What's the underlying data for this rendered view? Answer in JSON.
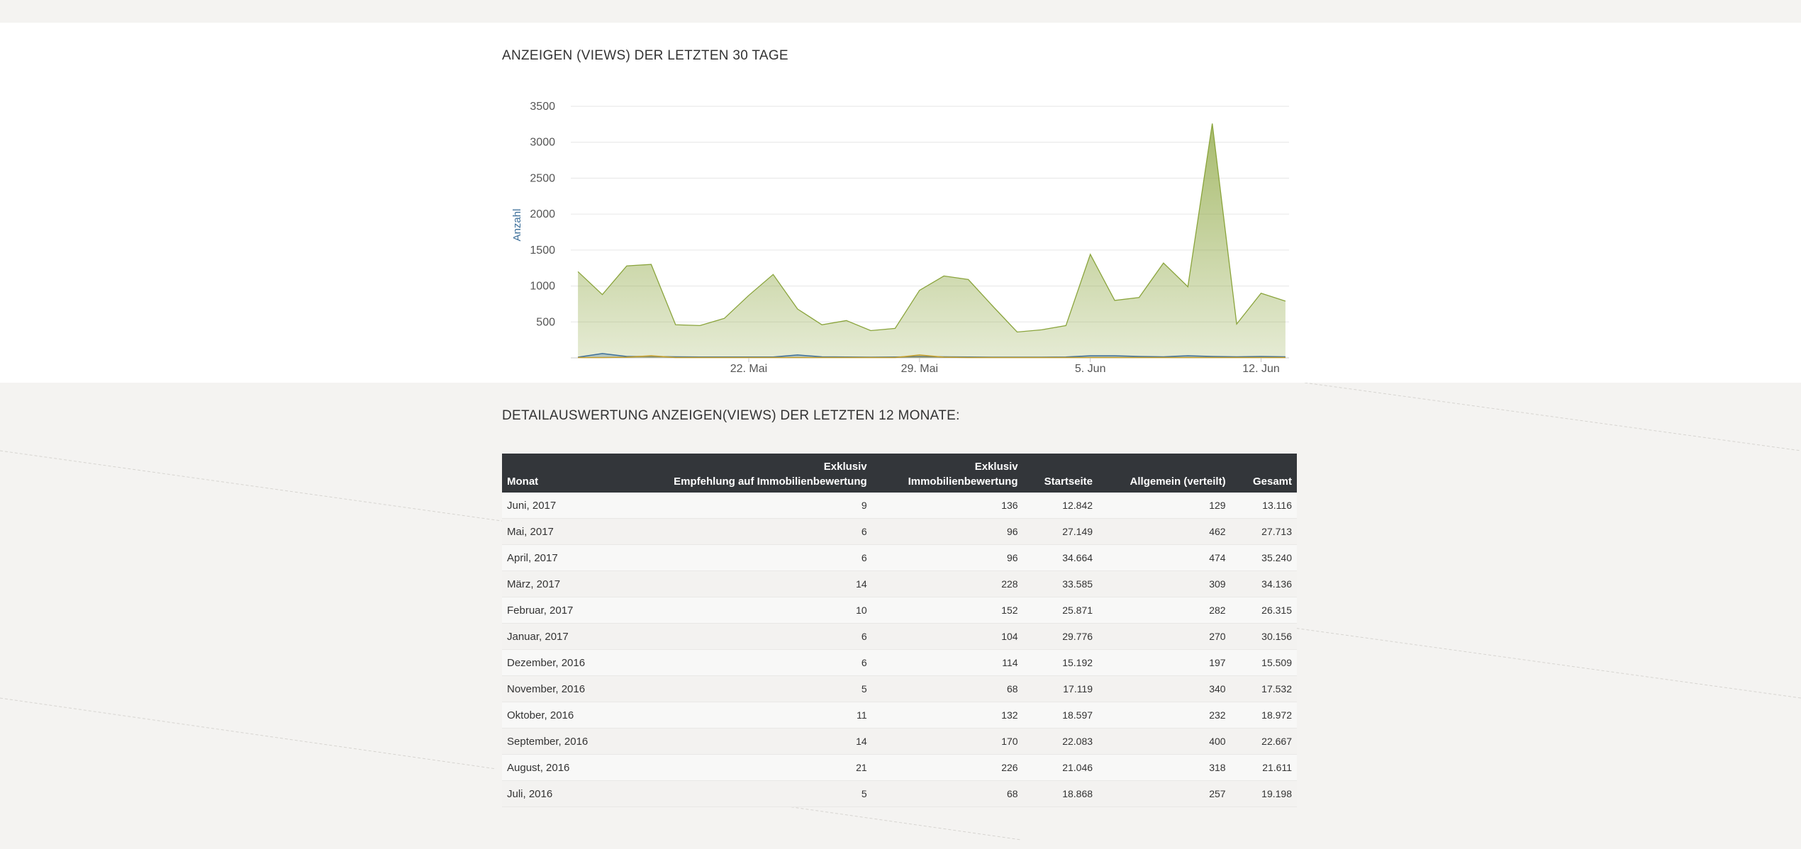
{
  "chart_section": {
    "title": "ANZEIGEN (VIEWS) DER LETZTEN 30 TAGE"
  },
  "chart_data": {
    "type": "area",
    "title": "ANZEIGEN (VIEWS) DER LETZTEN 30 TAGE",
    "ylabel": "Anzahl",
    "xlabel": "",
    "ylim": [
      0,
      3500
    ],
    "y_ticks": [
      500,
      1000,
      1500,
      2000,
      2500,
      3000,
      3500
    ],
    "x": [
      "15. Mai",
      "16. Mai",
      "17. Mai",
      "18. Mai",
      "19. Mai",
      "20. Mai",
      "21. Mai",
      "22. Mai",
      "23. Mai",
      "24. Mai",
      "25. Mai",
      "26. Mai",
      "27. Mai",
      "28. Mai",
      "29. Mai",
      "30. Mai",
      "31. Mai",
      "1. Jun",
      "2. Jun",
      "3. Jun",
      "4. Jun",
      "5. Jun",
      "6. Jun",
      "7. Jun",
      "8. Jun",
      "9. Jun",
      "10. Jun",
      "11. Jun",
      "12. Jun",
      "13. Jun"
    ],
    "x_tick_labels": [
      {
        "label": "22. Mai",
        "index": 7
      },
      {
        "label": "29. Mai",
        "index": 14
      },
      {
        "label": "5. Jun",
        "index": 21
      },
      {
        "label": "12. Jun",
        "index": 28
      }
    ],
    "grid": true,
    "legend": "none",
    "series": [
      {
        "color": "#8aa43c",
        "values": [
          1200,
          880,
          1280,
          1300,
          460,
          450,
          550,
          870,
          1160,
          680,
          460,
          520,
          380,
          410,
          940,
          1140,
          1090,
          720,
          360,
          390,
          450,
          1440,
          800,
          840,
          1320,
          990,
          3260,
          470,
          900,
          790
        ]
      },
      {
        "color": "#3d6f9a",
        "values": [
          10,
          60,
          20,
          20,
          15,
          12,
          12,
          12,
          12,
          40,
          15,
          12,
          10,
          12,
          20,
          15,
          12,
          10,
          10,
          10,
          12,
          30,
          30,
          20,
          15,
          30,
          20,
          15,
          20,
          15
        ]
      },
      {
        "color": "#c8a02a",
        "values": [
          5,
          5,
          10,
          30,
          5,
          5,
          5,
          5,
          5,
          5,
          5,
          5,
          5,
          5,
          40,
          10,
          5,
          5,
          5,
          5,
          5,
          5,
          5,
          5,
          5,
          5,
          5,
          5,
          5,
          5
        ]
      }
    ]
  },
  "detail_section": {
    "title": "DETAILAUSWERTUNG ANZEIGEN(VIEWS) DER LETZTEN 12 MONATE:",
    "headers": {
      "monat": "Monat",
      "exklusiv_emp_line1": "Exklusiv",
      "exklusiv_emp_line2": "Empfehlung auf Immobilienbewertung",
      "exklusiv_imm_line1": "Exklusiv",
      "exklusiv_imm_line2": "Immobilienbewertung",
      "startseite": "Startseite",
      "allgemein": "Allgemein (verteilt)",
      "gesamt": "Gesamt"
    },
    "rows": [
      {
        "monat": "Juni, 2017",
        "emp": "9",
        "imm": "136",
        "start": "12.842",
        "allg": "129",
        "gesamt": "13.116"
      },
      {
        "monat": "Mai, 2017",
        "emp": "6",
        "imm": "96",
        "start": "27.149",
        "allg": "462",
        "gesamt": "27.713"
      },
      {
        "monat": "April, 2017",
        "emp": "6",
        "imm": "96",
        "start": "34.664",
        "allg": "474",
        "gesamt": "35.240"
      },
      {
        "monat": "März, 2017",
        "emp": "14",
        "imm": "228",
        "start": "33.585",
        "allg": "309",
        "gesamt": "34.136"
      },
      {
        "monat": "Februar, 2017",
        "emp": "10",
        "imm": "152",
        "start": "25.871",
        "allg": "282",
        "gesamt": "26.315"
      },
      {
        "monat": "Januar, 2017",
        "emp": "6",
        "imm": "104",
        "start": "29.776",
        "allg": "270",
        "gesamt": "30.156"
      },
      {
        "monat": "Dezember, 2016",
        "emp": "6",
        "imm": "114",
        "start": "15.192",
        "allg": "197",
        "gesamt": "15.509"
      },
      {
        "monat": "November, 2016",
        "emp": "5",
        "imm": "68",
        "start": "17.119",
        "allg": "340",
        "gesamt": "17.532"
      },
      {
        "monat": "Oktober, 2016",
        "emp": "11",
        "imm": "132",
        "start": "18.597",
        "allg": "232",
        "gesamt": "18.972"
      },
      {
        "monat": "September, 2016",
        "emp": "14",
        "imm": "170",
        "start": "22.083",
        "allg": "400",
        "gesamt": "22.667"
      },
      {
        "monat": "August, 2016",
        "emp": "21",
        "imm": "226",
        "start": "21.046",
        "allg": "318",
        "gesamt": "21.611"
      },
      {
        "monat": "Juli, 2016",
        "emp": "5",
        "imm": "68",
        "start": "18.868",
        "allg": "257",
        "gesamt": "19.198"
      }
    ]
  }
}
